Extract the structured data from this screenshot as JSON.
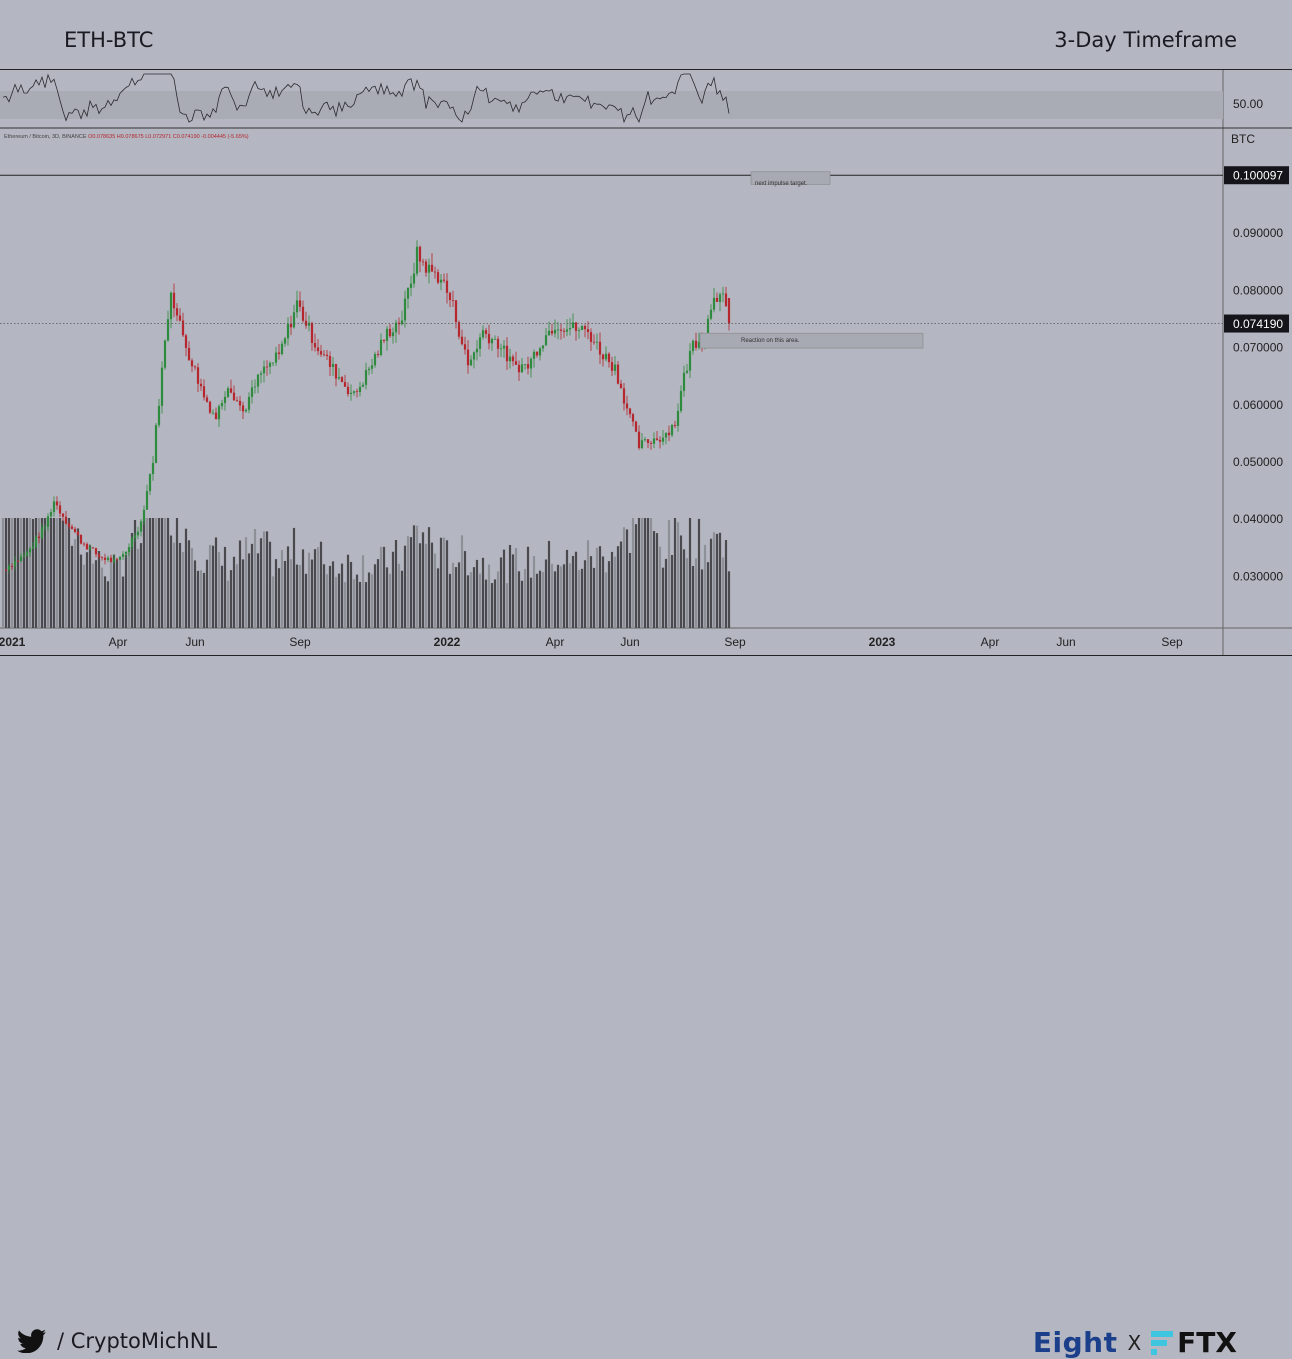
{
  "header": {
    "pair": "ETH-BTC",
    "timeframe": "3-Day Timeframe"
  },
  "footer": {
    "handle": "/ CryptoMichNL",
    "brand_left": "Eight",
    "brand_sep": "X",
    "brand_right": "FTX"
  },
  "colors": {
    "up": "#2e8b3e",
    "down": "#b5272d",
    "volume": "#4a4a4e",
    "volume_light": "#8e9097",
    "background": "#b4b6c1"
  },
  "chart_data": {
    "type": "candlestick",
    "title": "Ethereum / Bitcoin, 3D, BINANCE",
    "ohlc_legend": "O0.078635 H0.078675 L0.072971 C0.074190 -0.004445 (-5.65%)",
    "y_unit": "BTC",
    "ylim": [
      0.021,
      0.108
    ],
    "y_ticks": [
      "0.090000",
      "0.080000",
      "0.070000",
      "0.060000",
      "0.050000",
      "0.040000",
      "0.030000"
    ],
    "x_ticks": [
      "2021",
      "Apr",
      "Jun",
      "Sep",
      "2022",
      "Apr",
      "Jun",
      "Sep",
      "2023",
      "Apr",
      "Jun",
      "Sep"
    ],
    "last_price_label": "0.074190",
    "target_level_label": "0.100097",
    "target_level": 0.100097,
    "last_price": 0.07419,
    "annotations": [
      {
        "text": "next impulse target.",
        "price_low": 0.0985,
        "price_high": 0.1007
      },
      {
        "text": "Reaction on this area.",
        "price_low": 0.0699,
        "price_high": 0.0725
      }
    ],
    "rsi": {
      "label": "50.00"
    },
    "anchors": [
      [
        0,
        0.0312,
        0.029
      ],
      [
        8,
        0.034,
        0.019
      ],
      [
        14,
        0.0388,
        0.018
      ],
      [
        17,
        0.0432,
        0.02
      ],
      [
        21,
        0.0398,
        0.013
      ],
      [
        26,
        0.0362,
        0.011
      ],
      [
        32,
        0.0335,
        0.008
      ],
      [
        38,
        0.0325,
        0.007
      ],
      [
        41,
        0.0345,
        0.01
      ],
      [
        46,
        0.0395,
        0.011
      ],
      [
        50,
        0.0505,
        0.016
      ],
      [
        53,
        0.066,
        0.019
      ],
      [
        56,
        0.0805,
        0.016
      ],
      [
        58,
        0.0755,
        0.014
      ],
      [
        62,
        0.0688,
        0.012
      ],
      [
        67,
        0.0615,
        0.009
      ],
      [
        71,
        0.0578,
        0.009
      ],
      [
        75,
        0.0638,
        0.008
      ],
      [
        80,
        0.0588,
        0.009
      ],
      [
        86,
        0.0655,
        0.01
      ],
      [
        92,
        0.0685,
        0.008
      ],
      [
        98,
        0.0778,
        0.01
      ],
      [
        104,
        0.0708,
        0.009
      ],
      [
        110,
        0.0662,
        0.008
      ],
      [
        117,
        0.0615,
        0.008
      ],
      [
        122,
        0.0662,
        0.008
      ],
      [
        128,
        0.0725,
        0.008
      ],
      [
        133,
        0.0752,
        0.009
      ],
      [
        138,
        0.0862,
        0.012
      ],
      [
        142,
        0.0835,
        0.011
      ],
      [
        146,
        0.0822,
        0.009
      ],
      [
        150,
        0.0772,
        0.009
      ],
      [
        155,
        0.0668,
        0.009
      ],
      [
        160,
        0.0728,
        0.008
      ],
      [
        165,
        0.0708,
        0.008
      ],
      [
        170,
        0.0668,
        0.008
      ],
      [
        175,
        0.0668,
        0.008
      ],
      [
        179,
        0.0708,
        0.008
      ],
      [
        184,
        0.0742,
        0.009
      ],
      [
        189,
        0.0735,
        0.008
      ],
      [
        195,
        0.0728,
        0.009
      ],
      [
        199,
        0.0695,
        0.009
      ],
      [
        204,
        0.0665,
        0.01
      ],
      [
        208,
        0.0595,
        0.011
      ],
      [
        212,
        0.0528,
        0.017
      ],
      [
        216,
        0.0538,
        0.012
      ],
      [
        220,
        0.0545,
        0.01
      ],
      [
        224,
        0.0568,
        0.011
      ],
      [
        227,
        0.0648,
        0.013
      ],
      [
        230,
        0.0708,
        0.011
      ],
      [
        234,
        0.0722,
        0.01
      ],
      [
        237,
        0.0798,
        0.012
      ],
      [
        240,
        0.0782,
        0.01
      ],
      [
        242,
        0.0742,
        0.01
      ]
    ]
  }
}
